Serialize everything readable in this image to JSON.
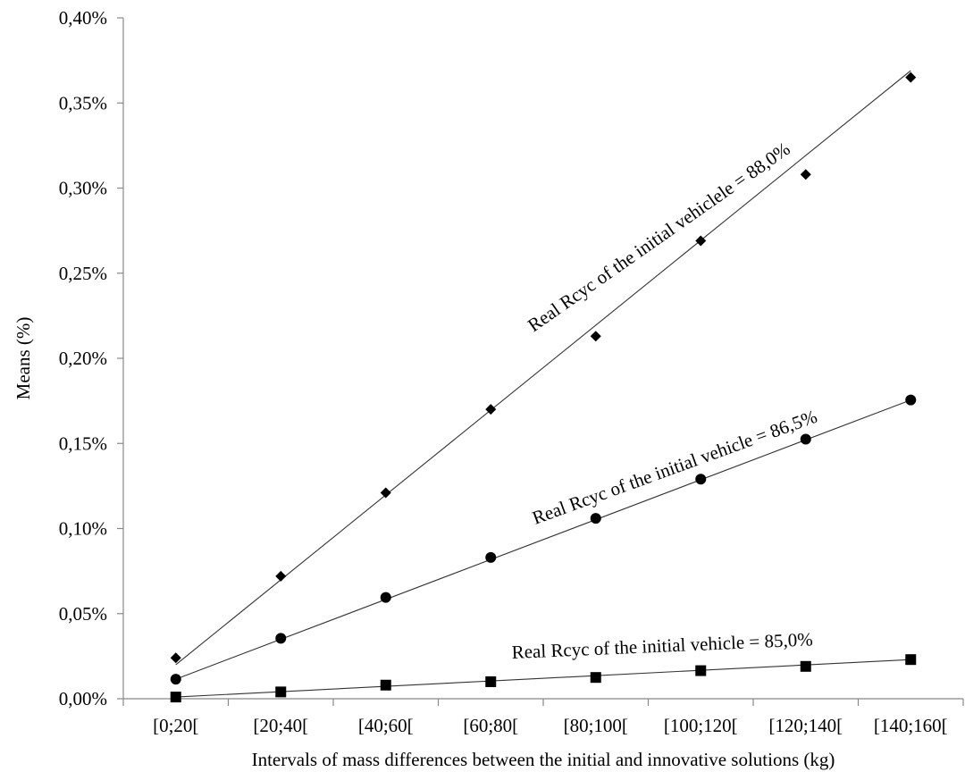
{
  "chart_data": {
    "type": "scatter",
    "xlabel": "Intervals of mass differences between the initial and innovative solutions (kg)",
    "ylabel": "Means (%)",
    "categories": [
      "[0;20[",
      "[20;40[",
      "[40;60[",
      "[60;80[",
      "[80;100[",
      "[100;120[",
      "[120;140[",
      "[140;160["
    ],
    "ylim": [
      0,
      0.4
    ],
    "yticks": [
      0,
      0.05,
      0.1,
      0.15,
      0.2,
      0.25,
      0.3,
      0.35,
      0.4
    ],
    "ytick_labels": [
      "0,00%",
      "0,05%",
      "0,10%",
      "0,15%",
      "0,20%",
      "0,25%",
      "0,30%",
      "0,35%",
      "0,40%"
    ],
    "grid": false,
    "series": [
      {
        "marker": "diamond",
        "values": [
          0.024,
          0.072,
          0.121,
          0.17,
          0.213,
          0.269,
          0.308,
          0.365
        ],
        "trend_line": [
          0.02,
          0.369
        ],
        "annotation": "Real Rcyc of the initial vehiclele = 88,0%"
      },
      {
        "marker": "circle",
        "values": [
          0.0115,
          0.0355,
          0.0595,
          0.083,
          0.106,
          0.129,
          0.1525,
          0.1755
        ],
        "trend_line": [
          0.0115,
          0.1755
        ],
        "annotation": "Real Rcyc of the initial vehicle = 86,5%"
      },
      {
        "marker": "square",
        "values": [
          0.001,
          0.004,
          0.008,
          0.01,
          0.0125,
          0.0165,
          0.019,
          0.023
        ],
        "trend_line": [
          0.001,
          0.023
        ],
        "annotation": "Real Rcyc of the initial vehicle = 85,0%"
      }
    ]
  }
}
